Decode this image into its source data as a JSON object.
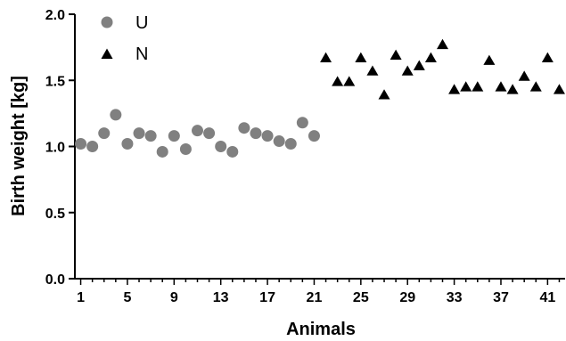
{
  "chart_data": {
    "type": "scatter",
    "xlabel": "Animals",
    "ylabel": "Birth weight [kg]",
    "xlim": [
      0.5,
      42.5
    ],
    "ylim": [
      0.0,
      2.0
    ],
    "yticks": [
      0.0,
      0.5,
      1.0,
      1.5,
      2.0
    ],
    "ytick_labels": [
      "0.0",
      "0.5",
      "1.0",
      "1.5",
      "2.0"
    ],
    "xticks": [
      1,
      5,
      9,
      13,
      17,
      21,
      25,
      29,
      33,
      37,
      41
    ],
    "xtick_labels": [
      "1",
      "5",
      "9",
      "13",
      "17",
      "21",
      "25",
      "29",
      "33",
      "37",
      "41"
    ],
    "grid": false,
    "legend_position": "top-left",
    "series": [
      {
        "name": "U",
        "marker": "circle",
        "color": "#808080",
        "x": [
          1,
          2,
          3,
          4,
          5,
          6,
          7,
          8,
          9,
          10,
          11,
          12,
          13,
          14,
          15,
          16,
          17,
          18,
          19,
          20,
          21
        ],
        "y": [
          1.02,
          1.0,
          1.1,
          1.24,
          1.02,
          1.1,
          1.08,
          0.96,
          1.08,
          0.98,
          1.12,
          1.1,
          1.0,
          0.96,
          1.14,
          1.1,
          1.08,
          1.04,
          1.02,
          1.18,
          1.08
        ]
      },
      {
        "name": "N",
        "marker": "triangle",
        "color": "#000000",
        "x": [
          22,
          23,
          24,
          25,
          26,
          27,
          28,
          29,
          30,
          31,
          32,
          33,
          34,
          35,
          36,
          37,
          38,
          39,
          40,
          41,
          42
        ],
        "y": [
          1.67,
          1.49,
          1.49,
          1.67,
          1.57,
          1.39,
          1.69,
          1.57,
          1.61,
          1.67,
          1.77,
          1.43,
          1.45,
          1.45,
          1.65,
          1.45,
          1.43,
          1.53,
          1.45,
          1.67,
          1.43
        ]
      }
    ]
  }
}
